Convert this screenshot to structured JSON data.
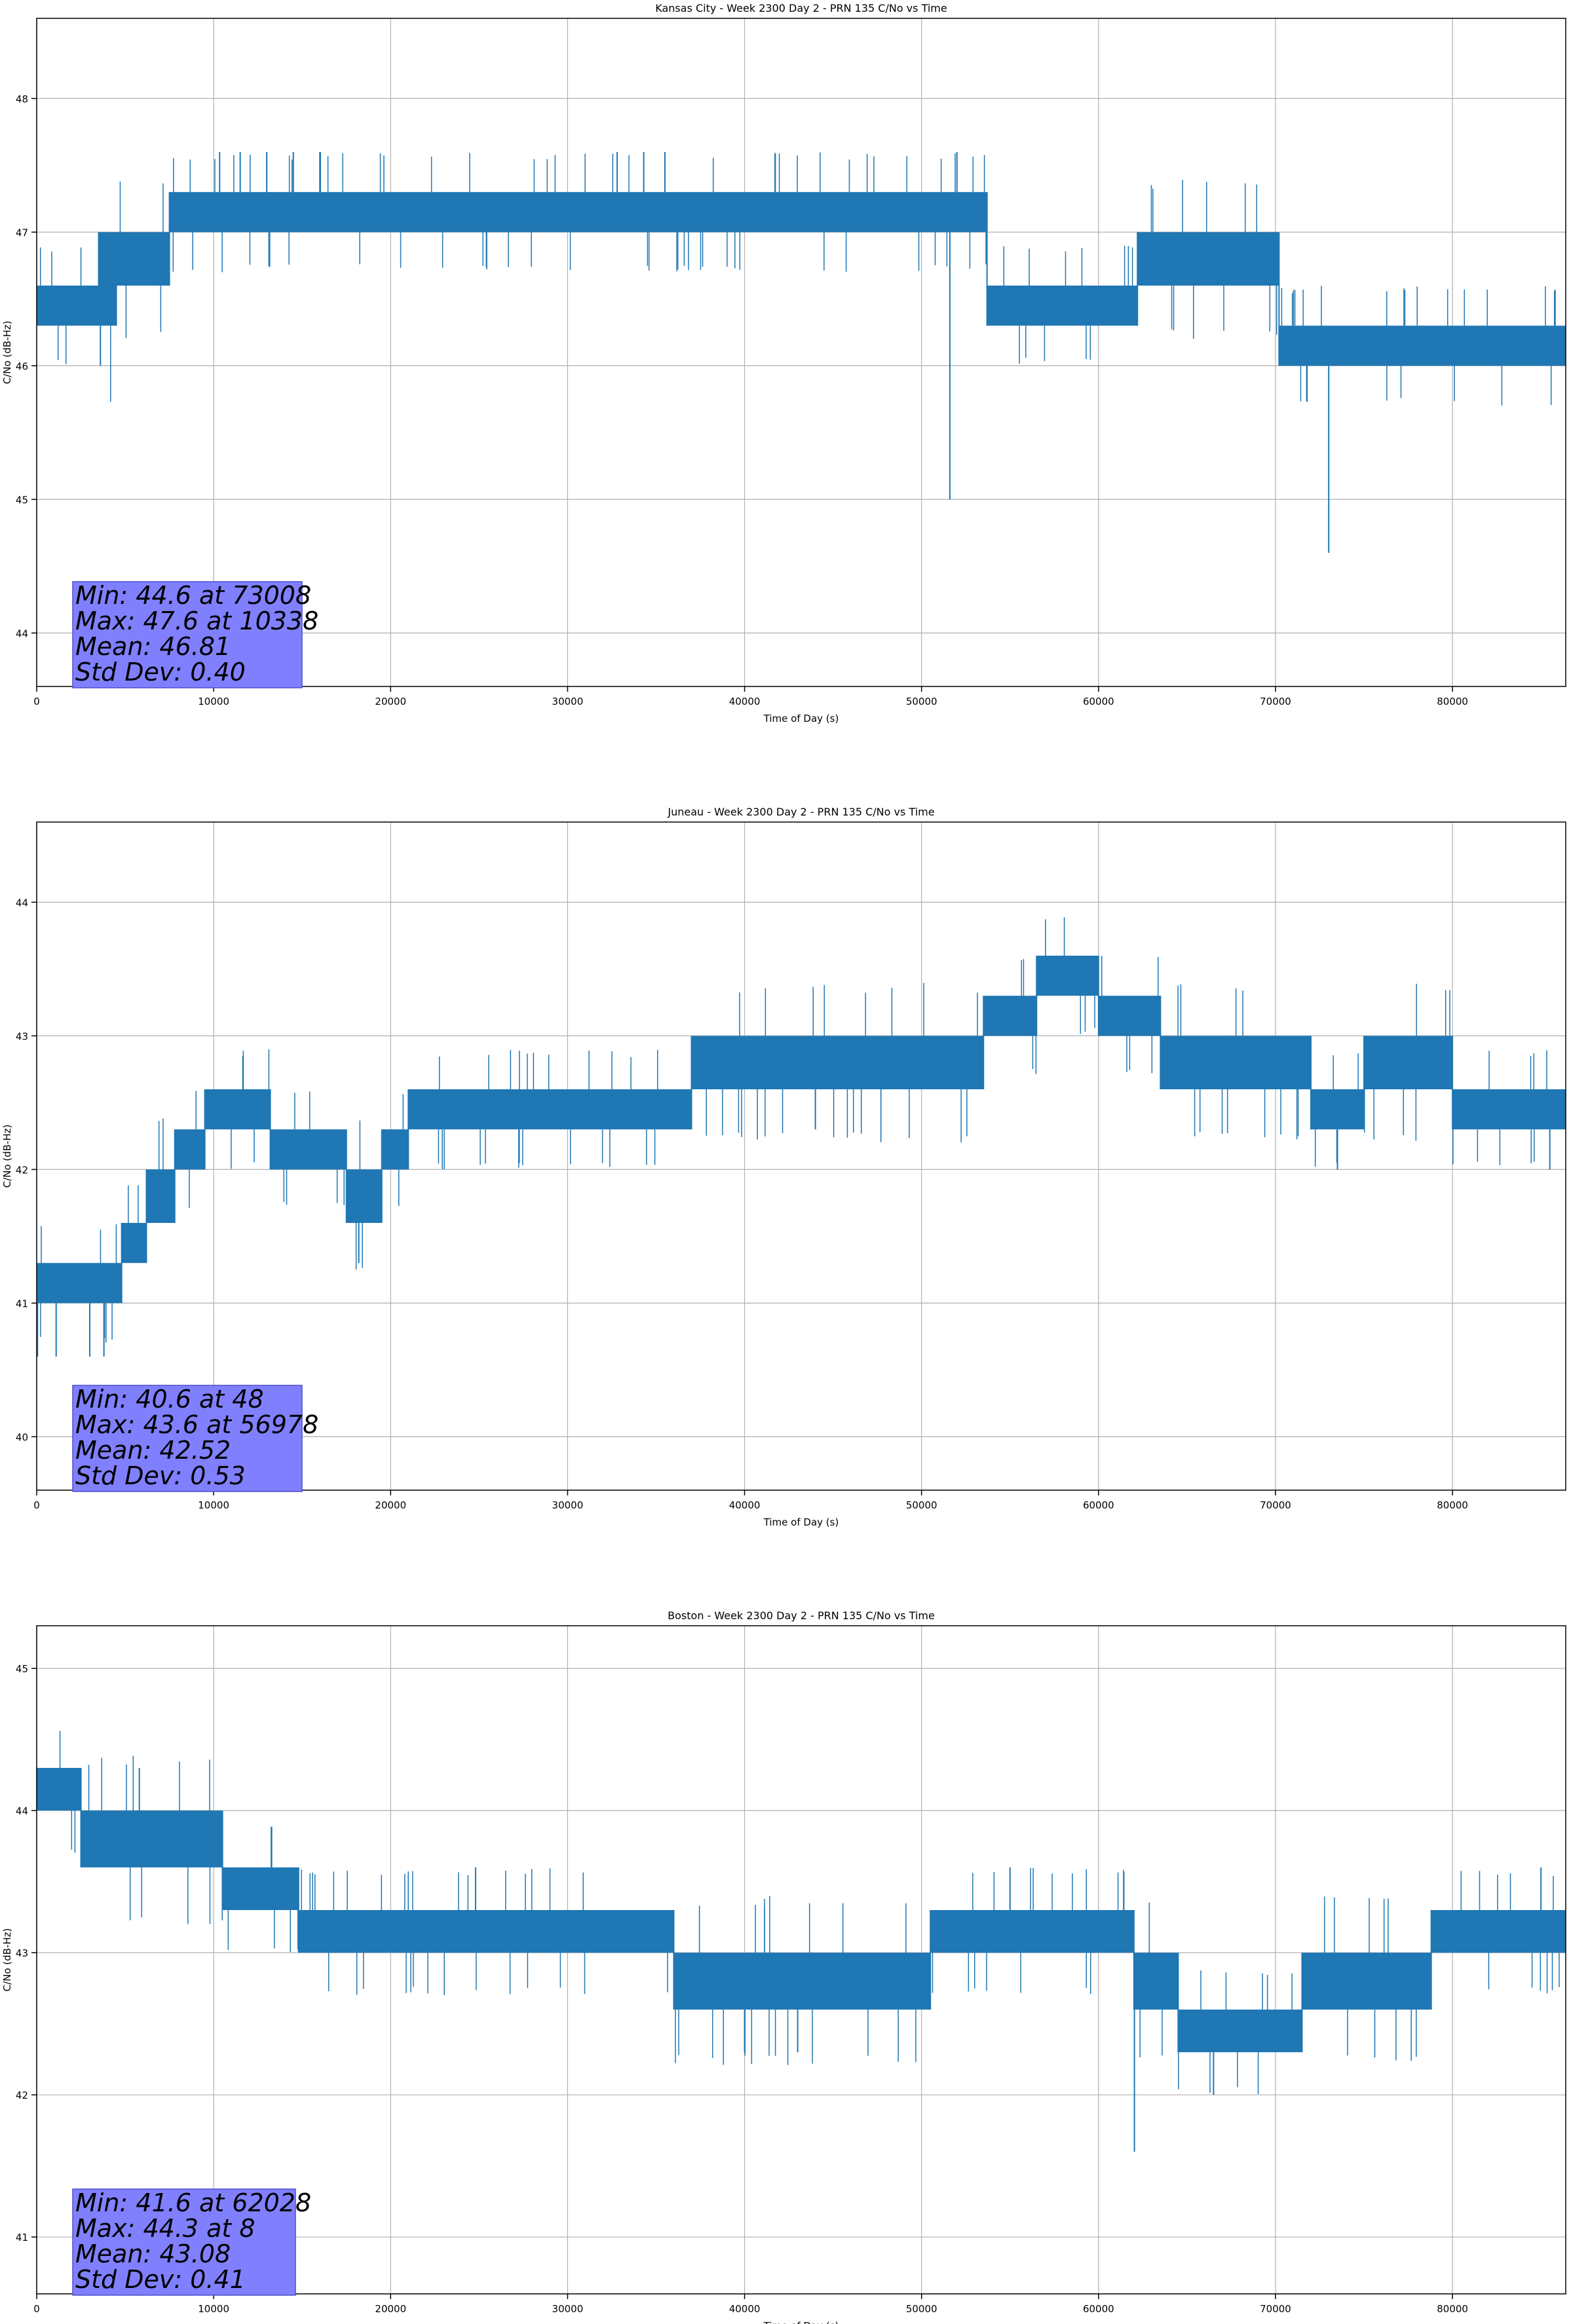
{
  "colors": {
    "series": "#1f77b4",
    "grid": "#b0b0b0",
    "axes": "#000000",
    "stats_box_fill": "#8080ff",
    "stats_box_edge": "#4d4dcc"
  },
  "chart_data": [
    {
      "type": "line",
      "title": "Kansas City - Week 2300 Day 2 - PRN 135 C/No vs Time",
      "xlabel": "Time of Day (s)",
      "ylabel": "C/No (dB-Hz)",
      "xlim": [
        0,
        86400
      ],
      "ylim": [
        43.6,
        48.6
      ],
      "xticks": [
        0,
        10000,
        20000,
        30000,
        40000,
        50000,
        60000,
        70000,
        80000
      ],
      "yticks": [
        44,
        45,
        46,
        47,
        48
      ],
      "grid": true,
      "stats": [
        "Min: 44.6 at 73008",
        "Max: 47.6 at 10338",
        "Mean: 46.81",
        "Std Dev: 0.40"
      ],
      "series": [
        {
          "segments": [
            {
              "x0": 0,
              "x1": 3500,
              "y_low": 46.3,
              "y_high": 46.6
            },
            {
              "x0": 3500,
              "x1": 4500,
              "y_low": 46.3,
              "y_high": 47.0
            },
            {
              "x0": 4500,
              "x1": 7500,
              "y_low": 46.6,
              "y_high": 47.0
            },
            {
              "x0": 7500,
              "x1": 53700,
              "y_low": 47.0,
              "y_high": 47.3
            },
            {
              "x0": 53700,
              "x1": 62200,
              "y_low": 46.3,
              "y_high": 46.6
            },
            {
              "x0": 62200,
              "x1": 70200,
              "y_low": 46.6,
              "y_high": 47.0
            },
            {
              "x0": 70200,
              "x1": 86400,
              "y_low": 46.0,
              "y_high": 46.3
            }
          ],
          "spikes": [
            {
              "x": 3600,
              "y": 46.0
            },
            {
              "x": 10338,
              "y": 47.6
            },
            {
              "x": 11500,
              "y": 47.6
            },
            {
              "x": 13000,
              "y": 47.6
            },
            {
              "x": 14500,
              "y": 47.6
            },
            {
              "x": 16000,
              "y": 47.6
            },
            {
              "x": 32800,
              "y": 47.6
            },
            {
              "x": 34300,
              "y": 47.6
            },
            {
              "x": 35500,
              "y": 47.6
            },
            {
              "x": 51600,
              "y": 45.0
            },
            {
              "x": 52000,
              "y": 47.6
            },
            {
              "x": 73008,
              "y": 44.6
            }
          ]
        }
      ]
    },
    {
      "type": "line",
      "title": "Juneau - Week 2300 Day 2 - PRN 135 C/No vs Time",
      "xlabel": "Time of Day (s)",
      "ylabel": "C/No (dB-Hz)",
      "xlim": [
        0,
        86400
      ],
      "ylim": [
        39.6,
        44.6
      ],
      "xticks": [
        0,
        10000,
        20000,
        30000,
        40000,
        50000,
        60000,
        70000,
        80000
      ],
      "yticks": [
        40,
        41,
        42,
        43,
        44
      ],
      "grid": true,
      "stats": [
        "Min: 40.6 at 48",
        "Max: 43.6 at 56978",
        "Mean: 42.52",
        "Std Dev: 0.53"
      ],
      "series": [
        {
          "segments": [
            {
              "x0": 0,
              "x1": 4800,
              "y_low": 41.0,
              "y_high": 41.3
            },
            {
              "x0": 4800,
              "x1": 6200,
              "y_low": 41.3,
              "y_high": 41.6
            },
            {
              "x0": 6200,
              "x1": 7800,
              "y_low": 41.6,
              "y_high": 42.0
            },
            {
              "x0": 7800,
              "x1": 9500,
              "y_low": 42.0,
              "y_high": 42.3
            },
            {
              "x0": 9500,
              "x1": 13200,
              "y_low": 42.3,
              "y_high": 42.6
            },
            {
              "x0": 13200,
              "x1": 17500,
              "y_low": 42.0,
              "y_high": 42.3
            },
            {
              "x0": 17500,
              "x1": 19500,
              "y_low": 41.6,
              "y_high": 42.0
            },
            {
              "x0": 19500,
              "x1": 21000,
              "y_low": 42.0,
              "y_high": 42.3
            },
            {
              "x0": 21000,
              "x1": 37000,
              "y_low": 42.3,
              "y_high": 42.6
            },
            {
              "x0": 37000,
              "x1": 53500,
              "y_low": 42.6,
              "y_high": 43.0
            },
            {
              "x0": 53500,
              "x1": 56500,
              "y_low": 43.0,
              "y_high": 43.3
            },
            {
              "x0": 56500,
              "x1": 60000,
              "y_low": 43.3,
              "y_high": 43.6
            },
            {
              "x0": 60000,
              "x1": 63500,
              "y_low": 43.0,
              "y_high": 43.3
            },
            {
              "x0": 63500,
              "x1": 67500,
              "y_low": 42.6,
              "y_high": 43.0
            },
            {
              "x0": 67500,
              "x1": 72000,
              "y_low": 42.6,
              "y_high": 43.0
            },
            {
              "x0": 72000,
              "x1": 75000,
              "y_low": 42.3,
              "y_high": 42.6
            },
            {
              "x0": 75000,
              "x1": 80000,
              "y_low": 42.6,
              "y_high": 43.0
            },
            {
              "x0": 80000,
              "x1": 86400,
              "y_low": 42.3,
              "y_high": 42.6
            }
          ],
          "spikes": [
            {
              "x": 48,
              "y": 40.6
            },
            {
              "x": 1100,
              "y": 40.6
            },
            {
              "x": 3000,
              "y": 40.6
            },
            {
              "x": 3800,
              "y": 40.6
            },
            {
              "x": 18200,
              "y": 41.3
            },
            {
              "x": 44000,
              "y": 42.3
            },
            {
              "x": 56978,
              "y": 43.6
            },
            {
              "x": 73500,
              "y": 42.0
            },
            {
              "x": 85500,
              "y": 42.0
            }
          ]
        }
      ]
    },
    {
      "type": "line",
      "title": "Boston - Week 2300 Day 2 - PRN 135 C/No vs Time",
      "xlabel": "Time of Day (s)",
      "ylabel": "C/No (dB-Hz)",
      "xlim": [
        0,
        86400
      ],
      "ylim": [
        40.6,
        45.3
      ],
      "xticks": [
        0,
        10000,
        20000,
        30000,
        40000,
        50000,
        60000,
        70000,
        80000
      ],
      "yticks": [
        41,
        42,
        43,
        44,
        45
      ],
      "grid": true,
      "stats": [
        "Min: 41.6 at 62028",
        "Max: 44.3 at 8",
        "Mean: 43.08",
        "Std Dev: 0.41"
      ],
      "series": [
        {
          "segments": [
            {
              "x0": 0,
              "x1": 2500,
              "y_low": 44.0,
              "y_high": 44.3
            },
            {
              "x0": 2500,
              "x1": 7000,
              "y_low": 43.6,
              "y_high": 44.0
            },
            {
              "x0": 7000,
              "x1": 10500,
              "y_low": 43.6,
              "y_high": 44.0
            },
            {
              "x0": 10500,
              "x1": 14800,
              "y_low": 43.3,
              "y_high": 43.6
            },
            {
              "x0": 14800,
              "x1": 36000,
              "y_low": 43.0,
              "y_high": 43.3
            },
            {
              "x0": 36000,
              "x1": 50500,
              "y_low": 42.6,
              "y_high": 43.0
            },
            {
              "x0": 50500,
              "x1": 62000,
              "y_low": 43.0,
              "y_high": 43.3
            },
            {
              "x0": 62000,
              "x1": 64500,
              "y_low": 42.6,
              "y_high": 43.0
            },
            {
              "x0": 64500,
              "x1": 71500,
              "y_low": 42.3,
              "y_high": 42.6
            },
            {
              "x0": 71500,
              "x1": 78800,
              "y_low": 42.6,
              "y_high": 43.0
            },
            {
              "x0": 78800,
              "x1": 86400,
              "y_low": 43.0,
              "y_high": 43.3
            }
          ],
          "spikes": [
            {
              "x": 8,
              "y": 44.3
            },
            {
              "x": 5800,
              "y": 44.3
            },
            {
              "x": 24800,
              "y": 43.6
            },
            {
              "x": 40000,
              "y": 42.3
            },
            {
              "x": 43000,
              "y": 42.3
            },
            {
              "x": 55000,
              "y": 43.6
            },
            {
              "x": 62028,
              "y": 41.6
            },
            {
              "x": 66500,
              "y": 42.0
            },
            {
              "x": 85000,
              "y": 43.6
            }
          ]
        }
      ]
    }
  ]
}
